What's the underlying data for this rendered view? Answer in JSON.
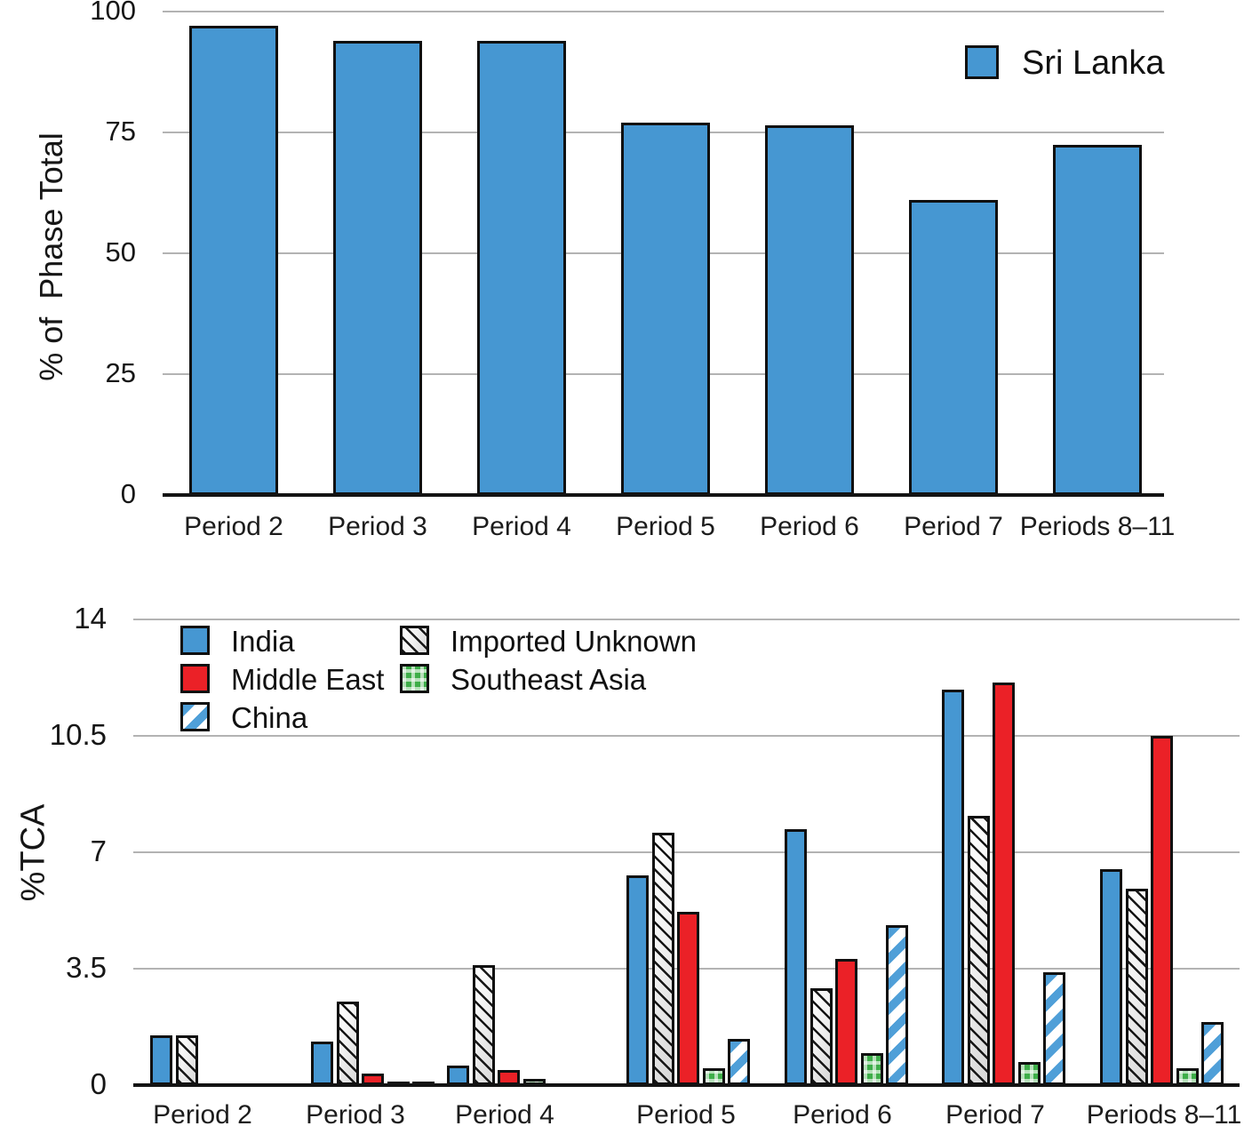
{
  "colors": {
    "blue": "#4697d2",
    "red": "#eb2127",
    "green": "#3eae49",
    "gridline": "#b3b3b3",
    "axis": "#141414"
  },
  "top_chart": {
    "ylabel": "% of  Phase Total",
    "legend": {
      "label": "Sri Lanka",
      "swatch": "blue-square-icon"
    }
  },
  "bottom_chart": {
    "ylabel": "%TCA",
    "legend": {
      "column1": [
        {
          "label": "India",
          "pattern": "solid-blue"
        },
        {
          "label": "Middle East",
          "pattern": "solid-red"
        },
        {
          "label": "China",
          "pattern": "blue-diagonal-stripes"
        }
      ],
      "column2": [
        {
          "label": "Imported Unknown",
          "pattern": "black-hatch"
        },
        {
          "label": "Southeast Asia",
          "pattern": "green-check"
        }
      ]
    }
  },
  "chart_data": [
    {
      "type": "bar",
      "title": "",
      "categories": [
        "Period 2",
        "Period 3",
        "Period 4",
        "Period 5",
        "Period 6",
        "Period 7",
        "Periods 8–11"
      ],
      "series": [
        {
          "name": "Sri Lanka",
          "pattern": "p-blue",
          "values": [
            97,
            94,
            94,
            77,
            76.5,
            61,
            72.5
          ]
        }
      ],
      "xlabel": "",
      "ylabel": "% of  Phase Total",
      "ylim": [
        0,
        100
      ],
      "yticks": [
        {
          "v": 0,
          "label": "0"
        },
        {
          "v": 25,
          "label": "25"
        },
        {
          "v": 50,
          "label": "50"
        },
        {
          "v": 75,
          "label": "75"
        },
        {
          "v": 100,
          "label": "100"
        }
      ],
      "grid": true,
      "legend_position": "top-right"
    },
    {
      "type": "bar",
      "title": "",
      "categories": [
        "Period 2",
        "Period 3",
        "Period 4",
        "Period 5",
        "Period 6",
        "Period 7",
        "Periods 8–11"
      ],
      "series": [
        {
          "name": "India",
          "pattern": "p-blue",
          "values": [
            1.5,
            1.3,
            0.6,
            6.3,
            7.7,
            11.9,
            6.5
          ]
        },
        {
          "name": "Imported Unknown",
          "pattern": "p-hatch",
          "values": [
            1.5,
            2.5,
            3.6,
            7.6,
            2.9,
            8.1,
            5.9
          ]
        },
        {
          "name": "Middle East",
          "pattern": "p-red",
          "values": [
            null,
            0.35,
            0.45,
            5.2,
            3.8,
            12.1,
            10.5
          ]
        },
        {
          "name": "Southeast Asia",
          "pattern": "p-check",
          "values": [
            null,
            0.1,
            0.2,
            0.5,
            0.95,
            0.7,
            0.5
          ]
        },
        {
          "name": "China",
          "pattern": "p-stripe",
          "values": [
            null,
            0.1,
            null,
            1.4,
            4.8,
            3.4,
            1.9
          ]
        }
      ],
      "xlabel": "",
      "ylabel": "%TCA",
      "ylim": [
        0,
        14
      ],
      "yticks": [
        {
          "v": 0,
          "label": "0"
        },
        {
          "v": 3.5,
          "label": "3.5"
        },
        {
          "v": 7,
          "label": "7"
        },
        {
          "v": 10.5,
          "label": "10.5"
        },
        {
          "v": 14,
          "label": "14"
        }
      ],
      "grid": true,
      "legend_position": "top-left"
    }
  ]
}
